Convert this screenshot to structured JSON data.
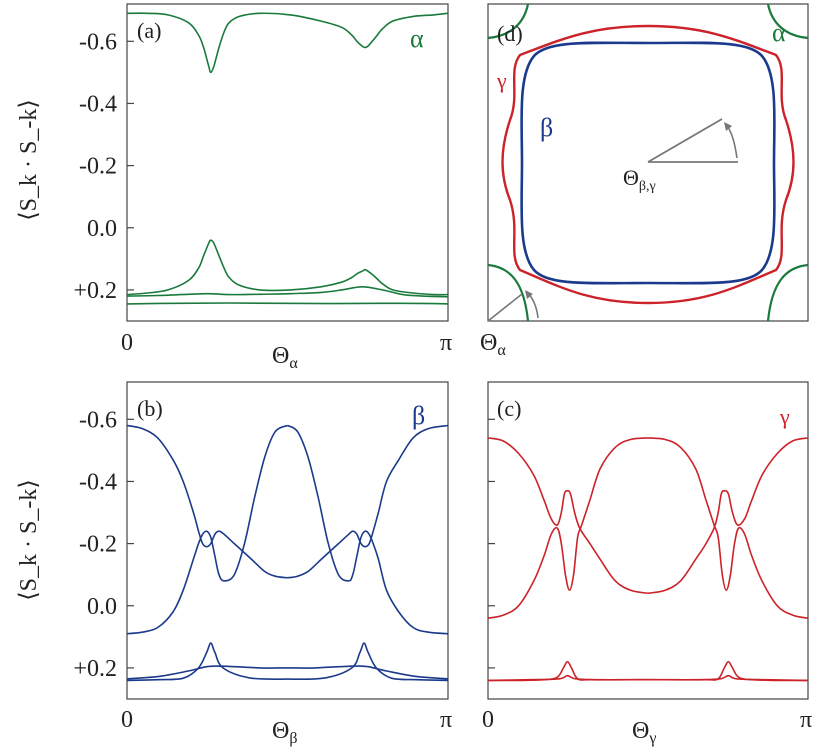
{
  "colors": {
    "alpha": "#1a7a3c",
    "beta": "#1b3a8c",
    "gamma": "#cc2229",
    "axis": "#444444",
    "arrow": "#777777"
  },
  "chart_data": [
    {
      "panel": "(a)",
      "type": "line",
      "band_label": "α",
      "xlabel_main": "Θ",
      "xlabel_sub": "α",
      "ylabel": "⟨S_k · S_-k⟩",
      "xlim": [
        0,
        3.1416
      ],
      "ylim": [
        0.3,
        -0.72
      ],
      "ytick_values": [
        -0.6,
        -0.4,
        -0.2,
        0.0,
        0.2
      ],
      "ytick_labels": [
        "-0.6",
        "-0.4",
        "-0.2",
        "0.0",
        "+0.2"
      ],
      "xtick_values": [
        0,
        3.1416
      ],
      "xtick_labels": [
        "0",
        "π"
      ],
      "series": [
        {
          "x": [
            0,
            0.2,
            0.4,
            0.6,
            0.7,
            0.75,
            0.8,
            0.82,
            0.85,
            0.9,
            0.95,
            1.0,
            1.1,
            1.3,
            1.6,
            1.9,
            2.1,
            2.2,
            2.25,
            2.3,
            2.33,
            2.36,
            2.4,
            2.45,
            2.5,
            2.6,
            2.8,
            3.0,
            3.1416
          ],
          "y": [
            -0.69,
            -0.69,
            -0.685,
            -0.66,
            -0.62,
            -0.58,
            -0.52,
            -0.5,
            -0.52,
            -0.58,
            -0.63,
            -0.66,
            -0.68,
            -0.69,
            -0.685,
            -0.665,
            -0.645,
            -0.62,
            -0.6,
            -0.585,
            -0.58,
            -0.585,
            -0.6,
            -0.62,
            -0.64,
            -0.665,
            -0.68,
            -0.685,
            -0.69
          ]
        },
        {
          "x": [
            0,
            0.2,
            0.4,
            0.6,
            0.7,
            0.75,
            0.8,
            0.82,
            0.85,
            0.9,
            0.95,
            1.0,
            1.1,
            1.3,
            1.6,
            1.9,
            2.1,
            2.2,
            2.25,
            2.3,
            2.33,
            2.36,
            2.4,
            2.45,
            2.5,
            2.6,
            2.8,
            3.0,
            3.1416
          ],
          "y": [
            0.215,
            0.21,
            0.2,
            0.17,
            0.13,
            0.09,
            0.05,
            0.04,
            0.05,
            0.09,
            0.13,
            0.16,
            0.185,
            0.2,
            0.2,
            0.19,
            0.175,
            0.16,
            0.148,
            0.14,
            0.135,
            0.14,
            0.15,
            0.165,
            0.18,
            0.2,
            0.21,
            0.215,
            0.215
          ]
        },
        {
          "x": [
            0,
            0.3,
            0.6,
            0.8,
            1.0,
            1.3,
            1.6,
            1.9,
            2.1,
            2.3,
            2.5,
            2.7,
            2.9,
            3.1416
          ],
          "y": [
            0.22,
            0.218,
            0.214,
            0.212,
            0.215,
            0.214,
            0.212,
            0.208,
            0.2,
            0.19,
            0.2,
            0.215,
            0.22,
            0.222
          ]
        },
        {
          "x": [
            0,
            0.5,
            1.0,
            1.5,
            2.0,
            2.5,
            3.0,
            3.1416
          ],
          "y": [
            0.245,
            0.243,
            0.242,
            0.243,
            0.244,
            0.243,
            0.244,
            0.245
          ]
        }
      ]
    },
    {
      "panel": "(b)",
      "type": "line",
      "band_label": "β",
      "xlabel_main": "Θ",
      "xlabel_sub": "β",
      "ylabel": "⟨S_k · S_-k⟩",
      "xlim": [
        0,
        3.1416
      ],
      "ylim": [
        0.3,
        -0.72
      ],
      "ytick_values": [
        -0.6,
        -0.4,
        -0.2,
        0.0,
        0.2
      ],
      "ytick_labels": [
        "-0.6",
        "-0.4",
        "-0.2",
        "0.0",
        "+0.2"
      ],
      "xtick_values": [
        0,
        3.1416
      ],
      "xtick_labels": [
        "0",
        "π"
      ],
      "series": [
        {
          "x": [
            0,
            0.15,
            0.3,
            0.45,
            0.55,
            0.65,
            0.7,
            0.74,
            0.78,
            0.82,
            0.86,
            0.9,
            0.95,
            1.05,
            1.15,
            1.25,
            1.35,
            1.45,
            1.57
          ],
          "y": [
            -0.58,
            -0.57,
            -0.54,
            -0.47,
            -0.4,
            -0.3,
            -0.24,
            -0.2,
            -0.19,
            -0.2,
            -0.23,
            -0.24,
            -0.23,
            -0.2,
            -0.17,
            -0.14,
            -0.11,
            -0.095,
            -0.09
          ]
        },
        {
          "x": [
            0,
            0.15,
            0.3,
            0.45,
            0.55,
            0.65,
            0.7,
            0.74,
            0.78,
            0.82,
            0.86,
            0.9,
            0.95,
            1.05,
            1.15,
            1.25,
            1.35,
            1.45,
            1.57
          ],
          "y": [
            0.09,
            0.085,
            0.07,
            0.02,
            -0.05,
            -0.15,
            -0.2,
            -0.23,
            -0.24,
            -0.22,
            -0.16,
            -0.1,
            -0.08,
            -0.1,
            -0.2,
            -0.35,
            -0.48,
            -0.56,
            -0.58
          ]
        },
        {
          "x": [
            1.57,
            1.67,
            1.77,
            1.87,
            1.97,
            2.07,
            2.17,
            2.21,
            2.25,
            2.29,
            2.33,
            2.37,
            2.41,
            2.46,
            2.54,
            2.66,
            2.8,
            2.95,
            3.1416
          ],
          "y": [
            -0.09,
            -0.095,
            -0.11,
            -0.14,
            -0.17,
            -0.2,
            -0.23,
            -0.24,
            -0.23,
            -0.2,
            -0.19,
            -0.2,
            -0.24,
            -0.3,
            -0.4,
            -0.47,
            -0.54,
            -0.57,
            -0.58
          ]
        },
        {
          "x": [
            1.57,
            1.67,
            1.77,
            1.87,
            1.97,
            2.07,
            2.17,
            2.21,
            2.25,
            2.29,
            2.33,
            2.37,
            2.41,
            2.46,
            2.54,
            2.66,
            2.8,
            2.95,
            3.1416
          ],
          "y": [
            -0.58,
            -0.56,
            -0.48,
            -0.35,
            -0.2,
            -0.1,
            -0.08,
            -0.1,
            -0.16,
            -0.22,
            -0.24,
            -0.23,
            -0.2,
            -0.15,
            -0.05,
            0.02,
            0.07,
            0.085,
            0.09
          ]
        },
        {
          "x": [
            0,
            0.3,
            0.55,
            0.7,
            0.78,
            0.82,
            0.86,
            0.94,
            1.2,
            1.57,
            1.94,
            2.2,
            2.28,
            2.32,
            2.36,
            2.44,
            2.59,
            2.84,
            3.1416
          ],
          "y": [
            0.24,
            0.238,
            0.233,
            0.2,
            0.15,
            0.12,
            0.15,
            0.2,
            0.232,
            0.236,
            0.232,
            0.2,
            0.15,
            0.12,
            0.15,
            0.2,
            0.233,
            0.238,
            0.24
          ]
        },
        {
          "x": [
            0,
            0.3,
            0.6,
            0.8,
            1.0,
            1.3,
            1.57,
            1.84,
            2.14,
            2.34,
            2.54,
            2.84,
            3.1416
          ],
          "y": [
            0.235,
            0.228,
            0.21,
            0.195,
            0.195,
            0.2,
            0.2,
            0.2,
            0.195,
            0.195,
            0.21,
            0.228,
            0.235
          ]
        }
      ]
    },
    {
      "panel": "(c)",
      "type": "line",
      "band_label": "γ",
      "xlabel_main": "Θ",
      "xlabel_sub": "γ",
      "xlim": [
        0,
        3.1416
      ],
      "ylim": [
        0.3,
        -0.72
      ],
      "xtick_values": [
        0,
        3.1416
      ],
      "xtick_labels": [
        "0",
        "π"
      ],
      "series": [
        {
          "x": [
            0,
            0.15,
            0.3,
            0.45,
            0.55,
            0.62,
            0.68,
            0.72,
            0.75,
            0.78,
            0.81,
            0.85,
            0.9,
            1.0,
            1.1,
            1.25,
            1.4,
            1.57
          ],
          "y": [
            -0.54,
            -0.53,
            -0.49,
            -0.42,
            -0.34,
            -0.28,
            -0.26,
            -0.3,
            -0.36,
            -0.37,
            -0.36,
            -0.3,
            -0.25,
            -0.2,
            -0.15,
            -0.08,
            -0.05,
            -0.04
          ]
        },
        {
          "x": [
            0,
            0.15,
            0.3,
            0.45,
            0.55,
            0.62,
            0.68,
            0.72,
            0.76,
            0.8,
            0.84,
            0.88,
            0.92,
            1.0,
            1.1,
            1.25,
            1.4,
            1.57
          ],
          "y": [
            0.04,
            0.03,
            0.0,
            -0.08,
            -0.16,
            -0.23,
            -0.25,
            -0.2,
            -0.1,
            -0.05,
            -0.1,
            -0.22,
            -0.26,
            -0.34,
            -0.44,
            -0.51,
            -0.535,
            -0.54
          ]
        },
        {
          "x": [
            1.57,
            1.74,
            1.89,
            2.04,
            2.14,
            2.22,
            2.26,
            2.29,
            2.32,
            2.36,
            2.4,
            2.45,
            2.52,
            2.59,
            2.69,
            2.84,
            2.99,
            3.1416
          ],
          "y": [
            -0.04,
            -0.05,
            -0.08,
            -0.15,
            -0.2,
            -0.25,
            -0.3,
            -0.36,
            -0.37,
            -0.36,
            -0.3,
            -0.26,
            -0.28,
            -0.34,
            -0.42,
            -0.49,
            -0.53,
            -0.54
          ]
        },
        {
          "x": [
            1.57,
            1.74,
            1.89,
            2.04,
            2.14,
            2.22,
            2.26,
            2.3,
            2.34,
            2.38,
            2.42,
            2.46,
            2.52,
            2.59,
            2.69,
            2.84,
            2.99,
            3.1416
          ],
          "y": [
            -0.54,
            -0.535,
            -0.51,
            -0.44,
            -0.34,
            -0.26,
            -0.22,
            -0.1,
            -0.05,
            -0.1,
            -0.2,
            -0.25,
            -0.23,
            -0.16,
            -0.08,
            0.0,
            0.03,
            0.04
          ]
        },
        {
          "x": [
            0,
            0.3,
            0.55,
            0.68,
            0.74,
            0.78,
            0.82,
            0.88,
            1.0,
            1.3,
            1.57,
            1.84,
            2.14,
            2.26,
            2.32,
            2.36,
            2.4,
            2.46,
            2.59,
            2.84,
            3.1416
          ],
          "y": [
            0.24,
            0.24,
            0.238,
            0.23,
            0.2,
            0.18,
            0.2,
            0.235,
            0.238,
            0.238,
            0.238,
            0.238,
            0.238,
            0.235,
            0.2,
            0.18,
            0.2,
            0.23,
            0.238,
            0.24,
            0.24
          ]
        },
        {
          "x": [
            0,
            0.4,
            0.7,
            0.78,
            0.86,
            1.1,
            1.57,
            2.04,
            2.28,
            2.36,
            2.44,
            2.74,
            3.1416
          ],
          "y": [
            0.24,
            0.238,
            0.235,
            0.225,
            0.235,
            0.238,
            0.238,
            0.238,
            0.235,
            0.225,
            0.235,
            0.238,
            0.24
          ]
        }
      ]
    }
  ],
  "panel_d": {
    "label": "(d)",
    "alpha_label": "α",
    "beta_label": "β",
    "gamma_label": "γ",
    "angle_label_main": "Θ",
    "angle_label_sub": "β,γ",
    "corner_label_main": "Θ",
    "corner_label_sub": "α"
  }
}
